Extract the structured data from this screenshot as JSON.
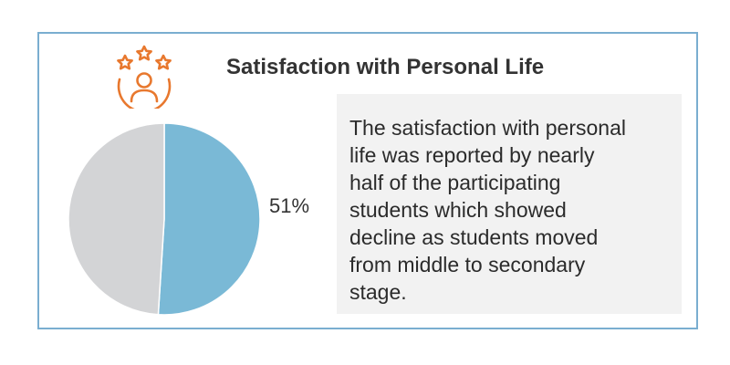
{
  "title": "Satisfaction with Personal Life",
  "icon": "person-with-stars-icon",
  "description": "The satisfaction with personal\nlife was reported by nearly\nhalf of the participating\nstudents which showed\ndecline as students moved\nfrom middle to secondary\nstage.",
  "colors": {
    "accent": "#e8782e",
    "border": "#7aaed0",
    "satisfied": "#7ab9d6",
    "other": "#d3d4d6",
    "panel": "#f2f2f2"
  },
  "chart_data": {
    "type": "pie",
    "title": "",
    "slices": [
      {
        "label": "51%",
        "value": 51,
        "color": "#7ab9d6"
      },
      {
        "label": "",
        "value": 49,
        "color": "#d3d4d6"
      }
    ],
    "start_angle": "12 o'clock",
    "direction": "clockwise",
    "legend": "none"
  }
}
